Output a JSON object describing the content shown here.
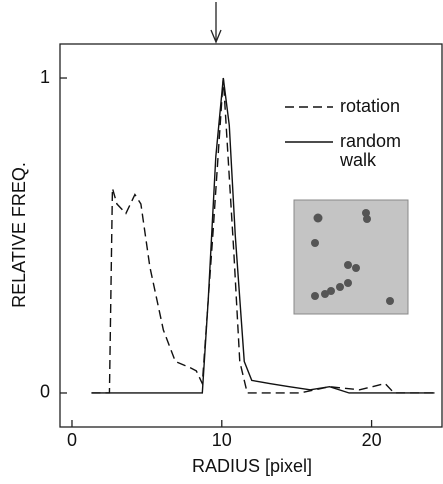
{
  "chart_data": {
    "type": "line",
    "xlabel": "RADIUS  [pixel]",
    "ylabel": "RELATIVE FREQ.",
    "xlim": [
      -0.8,
      24.7
    ],
    "ylim": [
      -0.108,
      1.108
    ],
    "xticks": [
      0,
      10,
      20
    ],
    "yticks": [
      0,
      1
    ],
    "series": [
      {
        "name": "rotation",
        "color": "#111111",
        "dashed": true,
        "x": [
          1.3,
          2.5,
          2.7,
          3.0,
          3.6,
          4.2,
          4.6,
          5.2,
          6.1,
          6.9,
          7.9,
          8.3,
          8.7,
          9.4,
          10.1,
          10.8,
          11.2,
          11.7,
          15.2,
          17.2,
          19.2,
          20.9,
          21.5,
          24.2
        ],
        "values": [
          0,
          0,
          0.65,
          0.6,
          0.57,
          0.63,
          0.6,
          0.4,
          0.2,
          0.1,
          0.08,
          0.07,
          0.03,
          0.5,
          1.0,
          0.45,
          0.1,
          0,
          0,
          0.02,
          0.01,
          0.03,
          0,
          0
        ]
      },
      {
        "name": "random walk",
        "color": "#111111",
        "dashed": false,
        "x": [
          1.3,
          8.7,
          9.1,
          9.6,
          10.1,
          10.5,
          10.9,
          11.5,
          12.0,
          13.2,
          14.5,
          15.9,
          17.2,
          18.5,
          20.0,
          24.2
        ],
        "values": [
          0,
          0,
          0.3,
          0.75,
          1.0,
          0.85,
          0.5,
          0.1,
          0.04,
          0.03,
          0.02,
          0.01,
          0.02,
          0,
          0,
          0
        ]
      }
    ]
  }
}
